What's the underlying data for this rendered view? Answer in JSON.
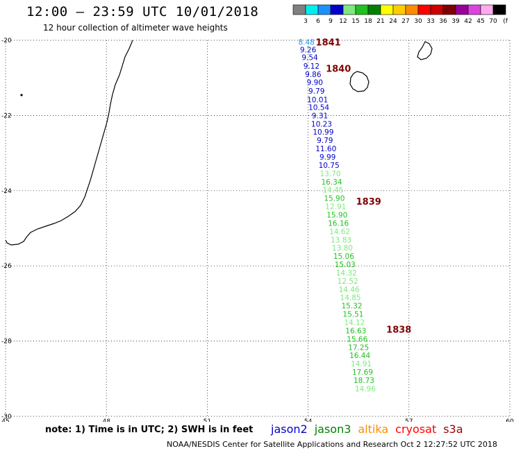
{
  "header": {
    "title": "12:00 – 23:59 UTC 10/01/2018",
    "subtitle": "12 hour collection of altimeter wave heights"
  },
  "legend": {
    "unit": "(ft)",
    "bins": [
      {
        "label": "3",
        "color": "#808080"
      },
      {
        "label": "6",
        "color": "#00eeee"
      },
      {
        "label": "9",
        "color": "#1e90ff"
      },
      {
        "label": "12",
        "color": "#0000cc"
      },
      {
        "label": "15",
        "color": "#7ee87e"
      },
      {
        "label": "18",
        "color": "#22c022"
      },
      {
        "label": "21",
        "color": "#008000"
      },
      {
        "label": "24",
        "color": "#ffff00"
      },
      {
        "label": "27",
        "color": "#ffcc00"
      },
      {
        "label": "30",
        "color": "#ff8c00"
      },
      {
        "label": "33",
        "color": "#ff0000"
      },
      {
        "label": "36",
        "color": "#cc0000"
      },
      {
        "label": "39",
        "color": "#800000"
      },
      {
        "label": "42",
        "color": "#990099"
      },
      {
        "label": "45",
        "color": "#dd44dd"
      },
      {
        "label": "70",
        "color": "#ffaaee"
      },
      {
        "label": "",
        "color": "#000000"
      }
    ]
  },
  "map": {
    "lon_range": [
      45,
      60
    ],
    "lat_range": [
      -30,
      -20
    ],
    "lon_ticks": [
      "45",
      "48",
      "51",
      "54",
      "57",
      "60"
    ],
    "lat_ticks": [
      "-20",
      "-22",
      "-24",
      "-26",
      "-28",
      "-30"
    ],
    "coast_color": "#000000",
    "grid": "dotted",
    "track": [
      {
        "lon": 53.95,
        "lat": -20.05,
        "value": "8.48",
        "color": "#1e90ff"
      },
      {
        "lon": 54.0,
        "lat": -20.25,
        "value": "9.26",
        "color": "#0000cc"
      },
      {
        "lon": 54.05,
        "lat": -20.45,
        "value": "9.54",
        "color": "#0000cc"
      },
      {
        "lon": 54.1,
        "lat": -20.68,
        "value": "9.12",
        "color": "#0000cc"
      },
      {
        "lon": 54.15,
        "lat": -20.9,
        "value": "9.86",
        "color": "#0000cc"
      },
      {
        "lon": 54.2,
        "lat": -21.12,
        "value": "9.90",
        "color": "#0000cc"
      },
      {
        "lon": 54.25,
        "lat": -21.35,
        "value": "9.79",
        "color": "#0000cc"
      },
      {
        "lon": 54.28,
        "lat": -21.58,
        "value": "10.01",
        "color": "#0000cc"
      },
      {
        "lon": 54.32,
        "lat": -21.78,
        "value": "10.54",
        "color": "#0000cc"
      },
      {
        "lon": 54.35,
        "lat": -22.0,
        "value": "9.31",
        "color": "#0000cc"
      },
      {
        "lon": 54.4,
        "lat": -22.22,
        "value": "10.23",
        "color": "#0000cc"
      },
      {
        "lon": 54.45,
        "lat": -22.44,
        "value": "10.99",
        "color": "#0000cc"
      },
      {
        "lon": 54.5,
        "lat": -22.66,
        "value": "9.79",
        "color": "#0000cc"
      },
      {
        "lon": 54.53,
        "lat": -22.88,
        "value": "11.60",
        "color": "#0000cc"
      },
      {
        "lon": 54.58,
        "lat": -23.1,
        "value": "9.99",
        "color": "#0000cc"
      },
      {
        "lon": 54.62,
        "lat": -23.32,
        "value": "10.75",
        "color": "#0000cc"
      },
      {
        "lon": 54.66,
        "lat": -23.54,
        "value": "13.70",
        "color": "#7ee87e"
      },
      {
        "lon": 54.7,
        "lat": -23.76,
        "value": "16.34",
        "color": "#22c022"
      },
      {
        "lon": 54.74,
        "lat": -23.98,
        "value": "14.45",
        "color": "#7ee87e"
      },
      {
        "lon": 54.78,
        "lat": -24.2,
        "value": "15.90",
        "color": "#22c022"
      },
      {
        "lon": 54.82,
        "lat": -24.42,
        "value": "12.91",
        "color": "#7ee87e"
      },
      {
        "lon": 54.86,
        "lat": -24.64,
        "value": "15.90",
        "color": "#22c022"
      },
      {
        "lon": 54.9,
        "lat": -24.86,
        "value": "16.16",
        "color": "#22c022"
      },
      {
        "lon": 54.94,
        "lat": -25.08,
        "value": "14.62",
        "color": "#7ee87e"
      },
      {
        "lon": 54.98,
        "lat": -25.3,
        "value": "13.83",
        "color": "#7ee87e"
      },
      {
        "lon": 55.02,
        "lat": -25.52,
        "value": "13.80",
        "color": "#7ee87e"
      },
      {
        "lon": 55.06,
        "lat": -25.74,
        "value": "15.06",
        "color": "#22c022"
      },
      {
        "lon": 55.1,
        "lat": -25.96,
        "value": "15.03",
        "color": "#22c022"
      },
      {
        "lon": 55.14,
        "lat": -26.18,
        "value": "14.32",
        "color": "#7ee87e"
      },
      {
        "lon": 55.18,
        "lat": -26.4,
        "value": "12.52",
        "color": "#7ee87e"
      },
      {
        "lon": 55.22,
        "lat": -26.62,
        "value": "14.46",
        "color": "#7ee87e"
      },
      {
        "lon": 55.26,
        "lat": -26.84,
        "value": "14.85",
        "color": "#7ee87e"
      },
      {
        "lon": 55.3,
        "lat": -27.06,
        "value": "15.32",
        "color": "#22c022"
      },
      {
        "lon": 55.34,
        "lat": -27.28,
        "value": "15.51",
        "color": "#22c022"
      },
      {
        "lon": 55.38,
        "lat": -27.5,
        "value": "14.12",
        "color": "#7ee87e"
      },
      {
        "lon": 55.42,
        "lat": -27.72,
        "value": "16.63",
        "color": "#22c022"
      },
      {
        "lon": 55.46,
        "lat": -27.94,
        "value": "15.66",
        "color": "#22c022"
      },
      {
        "lon": 55.5,
        "lat": -28.16,
        "value": "17.25",
        "color": "#22c022"
      },
      {
        "lon": 55.54,
        "lat": -28.38,
        "value": "16.44",
        "color": "#22c022"
      },
      {
        "lon": 55.58,
        "lat": -28.6,
        "value": "14.91",
        "color": "#7ee87e"
      },
      {
        "lon": 55.62,
        "lat": -28.82,
        "value": "17.69",
        "color": "#22c022"
      },
      {
        "lon": 55.66,
        "lat": -29.04,
        "value": "18.73",
        "color": "#22c022"
      },
      {
        "lon": 55.7,
        "lat": -29.26,
        "value": "14.96",
        "color": "#7ee87e"
      }
    ],
    "time_marks": [
      {
        "lon": 54.6,
        "lat": -20.05,
        "label": "1841"
      },
      {
        "lon": 54.9,
        "lat": -20.75,
        "label": "1840"
      },
      {
        "lon": 55.8,
        "lat": -24.28,
        "label": "1839"
      },
      {
        "lon": 56.7,
        "lat": -27.68,
        "label": "1838"
      }
    ]
  },
  "footer": {
    "note": "note:  1) Time is in UTC;  2) SWH is in feet",
    "credit": "NOAA/NESDIS Center for Satellite Applications and Research    Oct  2 12:27:52 UTC 2018",
    "satellites": [
      {
        "name": "jason2",
        "color": "#0000cc"
      },
      {
        "name": "jason3",
        "color": "#008000"
      },
      {
        "name": "altika",
        "color": "#ff8c00"
      },
      {
        "name": "cryosat",
        "color": "#ff0000"
      },
      {
        "name": "s3a",
        "color": "#990000"
      }
    ]
  }
}
